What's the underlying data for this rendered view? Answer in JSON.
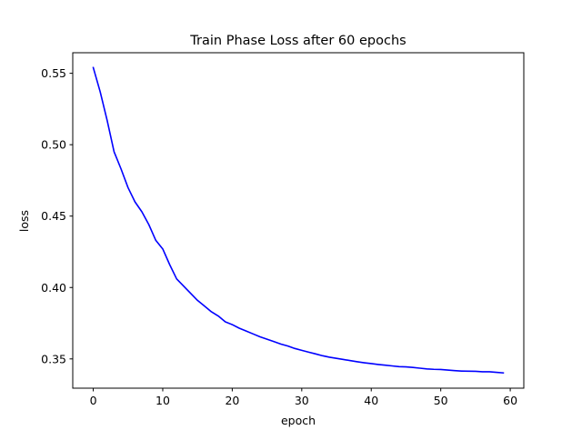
{
  "chart_data": {
    "type": "line",
    "title": "Train Phase Loss after 60 epochs",
    "xlabel": "epoch",
    "ylabel": "loss",
    "xlim": [
      -2.95,
      61.95
    ],
    "ylim": [
      0.3295,
      0.5644
    ],
    "xticks": [
      0,
      10,
      20,
      30,
      40,
      50,
      60
    ],
    "yticks": [
      0.35,
      0.4,
      0.45,
      0.5,
      0.55
    ],
    "ytick_labels": [
      "0.35",
      "0.40",
      "0.45",
      "0.50",
      "0.55"
    ],
    "grid": false,
    "series": [
      {
        "color": "#0000ff",
        "x": [
          0,
          1,
          2,
          3,
          4,
          5,
          6,
          7,
          8,
          9,
          10,
          11,
          12,
          13,
          14,
          15,
          16,
          17,
          18,
          19,
          20,
          21,
          22,
          23,
          24,
          25,
          26,
          27,
          28,
          29,
          30,
          31,
          32,
          33,
          34,
          35,
          36,
          37,
          38,
          39,
          40,
          41,
          42,
          43,
          44,
          45,
          46,
          47,
          48,
          49,
          50,
          51,
          52,
          53,
          54,
          55,
          56,
          57,
          58,
          59
        ],
        "y": [
          0.554,
          0.537,
          0.517,
          0.495,
          0.483,
          0.47,
          0.46,
          0.453,
          0.444,
          0.433,
          0.427,
          0.416,
          0.406,
          0.401,
          0.396,
          0.391,
          0.387,
          0.383,
          0.38,
          0.376,
          0.374,
          0.3715,
          0.3695,
          0.3675,
          0.3655,
          0.3638,
          0.3621,
          0.3604,
          0.359,
          0.3573,
          0.356,
          0.3547,
          0.3535,
          0.3522,
          0.3512,
          0.3504,
          0.3496,
          0.3488,
          0.348,
          0.3473,
          0.3467,
          0.3461,
          0.3456,
          0.3451,
          0.3446,
          0.3444,
          0.344,
          0.3435,
          0.343,
          0.3427,
          0.3426,
          0.3422,
          0.3418,
          0.3415,
          0.3414,
          0.3413,
          0.341,
          0.341,
          0.3406,
          0.3402
        ]
      }
    ]
  }
}
